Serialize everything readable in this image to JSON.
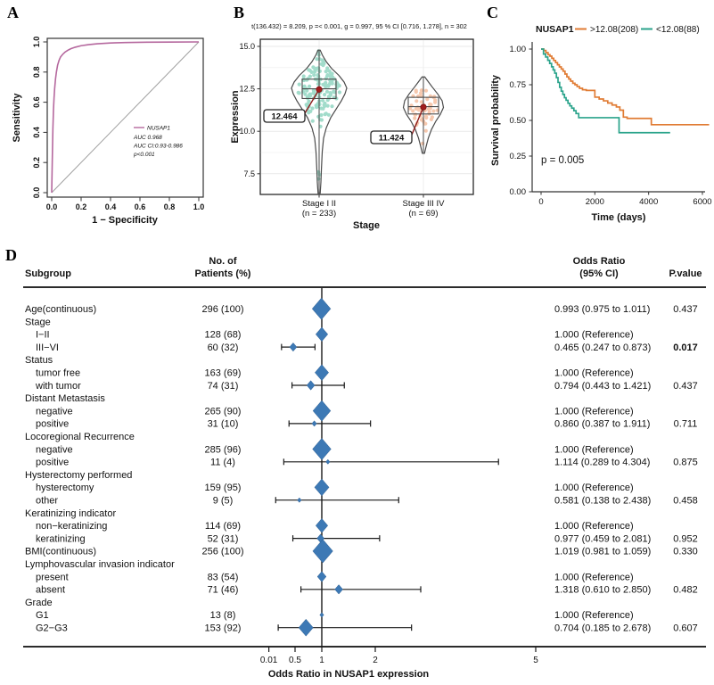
{
  "panel_labels": {
    "a": "A",
    "b": "B",
    "c": "C",
    "d": "D"
  },
  "chart_data": [
    {
      "id": "roc",
      "type": "line",
      "xlabel": "1 − Specificity",
      "ylabel": "Sensitivity",
      "xticks": [
        "0.0",
        "0.2",
        "0.4",
        "0.6",
        "0.8",
        "1.0"
      ],
      "yticks": [
        "0.0",
        "0.2",
        "0.4",
        "0.6",
        "0.8",
        "1.0"
      ],
      "xlim": [
        0,
        1
      ],
      "ylim": [
        0,
        1
      ],
      "legend": {
        "series_label": "NUSAP1",
        "lines": [
          "AUC 0.968",
          "AUC CI:0.93-0.986",
          "p<0.001"
        ]
      },
      "colors": {
        "curve": "#b5689e",
        "diagonal": "#a0a0a0"
      },
      "series": [
        {
          "name": "NUSAP1",
          "points": [
            [
              0,
              0
            ],
            [
              0.004,
              0.22
            ],
            [
              0.008,
              0.42
            ],
            [
              0.012,
              0.55
            ],
            [
              0.016,
              0.63
            ],
            [
              0.02,
              0.69
            ],
            [
              0.026,
              0.755
            ],
            [
              0.032,
              0.8
            ],
            [
              0.04,
              0.845
            ],
            [
              0.05,
              0.878
            ],
            [
              0.06,
              0.9
            ],
            [
              0.075,
              0.918
            ],
            [
              0.09,
              0.932
            ],
            [
              0.11,
              0.945
            ],
            [
              0.13,
              0.955
            ],
            [
              0.16,
              0.965
            ],
            [
              0.2,
              0.975
            ],
            [
              0.25,
              0.982
            ],
            [
              0.31,
              0.988
            ],
            [
              0.4,
              0.993
            ],
            [
              0.5,
              0.996
            ],
            [
              0.65,
              0.998
            ],
            [
              0.8,
              0.999
            ],
            [
              1,
              1
            ]
          ]
        }
      ]
    },
    {
      "id": "violin",
      "type": "violin-box-scatter",
      "title": "t(136.432) = 8.209, p =< 0.001, g = 0.997, 95 % CI [0.716, 1.278], n = 302",
      "xlabel": "Stage",
      "ylabel": "Expression",
      "yticks": [
        "15.0",
        "12.5",
        "10.0",
        "7.5"
      ],
      "ylim": [
        6.2,
        15.3
      ],
      "mean_dot_color": "#a11d1d",
      "groups": [
        {
          "label": "Stage I II",
          "sub": "(n = 233)",
          "n": 233,
          "mean": 12.464,
          "mean_label": "12.464",
          "median": 12.5,
          "q1": 11.93,
          "q3": 13.07,
          "min": 6.35,
          "max": 14.78,
          "color": "#57c0a1",
          "profile": [
            [
              6.35,
              1.2
            ],
            [
              7.0,
              2
            ],
            [
              7.8,
              2.6
            ],
            [
              8.8,
              3.5
            ],
            [
              9.6,
              5
            ],
            [
              10.2,
              8
            ],
            [
              10.8,
              13
            ],
            [
              11.3,
              19
            ],
            [
              11.8,
              25
            ],
            [
              12.2,
              29
            ],
            [
              12.55,
              31
            ],
            [
              12.9,
              28
            ],
            [
              13.3,
              22
            ],
            [
              13.7,
              14
            ],
            [
              14.1,
              8
            ],
            [
              14.5,
              3.5
            ],
            [
              14.78,
              1.2
            ]
          ]
        },
        {
          "label": "Stage III IV",
          "sub": "(n = 69)",
          "n": 69,
          "mean": 11.424,
          "mean_label": "11.424",
          "median": 11.45,
          "q1": 11.02,
          "q3": 12.0,
          "min": 8.7,
          "max": 13.2,
          "color": "#f09c6c",
          "profile": [
            [
              8.7,
              1.2
            ],
            [
              9.1,
              3
            ],
            [
              9.6,
              5.5
            ],
            [
              10.1,
              9
            ],
            [
              10.6,
              14
            ],
            [
              11.0,
              19
            ],
            [
              11.4,
              22.5
            ],
            [
              11.8,
              21
            ],
            [
              12.2,
              16
            ],
            [
              12.6,
              10
            ],
            [
              12.95,
              5
            ],
            [
              13.2,
              1.5
            ]
          ]
        }
      ]
    },
    {
      "id": "km",
      "type": "line",
      "legend_title": "NUSAP1",
      "xlabel": "Time (days)",
      "ylabel": "Survival probability",
      "xticks": [
        "0",
        "2000",
        "4000",
        "6000"
      ],
      "yticks": [
        "1.00",
        "0.75",
        "0.50",
        "0.25",
        "0.00"
      ],
      "xlim": [
        0,
        6300
      ],
      "ylim": [
        0,
        1
      ],
      "annotation": "p = 0.005",
      "series": [
        {
          "name": ">12.08(208)",
          "color": "#e07b33",
          "steps": [
            [
              0,
              1
            ],
            [
              100,
              0.99
            ],
            [
              180,
              0.975
            ],
            [
              260,
              0.96
            ],
            [
              330,
              0.95
            ],
            [
              400,
              0.935
            ],
            [
              470,
              0.92
            ],
            [
              540,
              0.905
            ],
            [
              610,
              0.89
            ],
            [
              680,
              0.875
            ],
            [
              750,
              0.86
            ],
            [
              820,
              0.845
            ],
            [
              890,
              0.825
            ],
            [
              960,
              0.805
            ],
            [
              1030,
              0.79
            ],
            [
              1100,
              0.775
            ],
            [
              1180,
              0.76
            ],
            [
              1260,
              0.75
            ],
            [
              1340,
              0.737
            ],
            [
              1430,
              0.725
            ],
            [
              1540,
              0.715
            ],
            [
              1680,
              0.71
            ],
            [
              2000,
              0.663
            ],
            [
              2160,
              0.65
            ],
            [
              2320,
              0.637
            ],
            [
              2480,
              0.622
            ],
            [
              2640,
              0.608
            ],
            [
              2800,
              0.594
            ],
            [
              2930,
              0.572
            ],
            [
              3060,
              0.523
            ],
            [
              3200,
              0.514
            ],
            [
              4100,
              0.47
            ],
            [
              6250,
              0.47
            ]
          ]
        },
        {
          "name": "<12.08(88)",
          "color": "#2aa38b",
          "steps": [
            [
              0,
              1
            ],
            [
              90,
              0.965
            ],
            [
              170,
              0.944
            ],
            [
              250,
              0.921
            ],
            [
              320,
              0.899
            ],
            [
              390,
              0.876
            ],
            [
              450,
              0.854
            ],
            [
              510,
              0.831
            ],
            [
              570,
              0.8
            ],
            [
              630,
              0.766
            ],
            [
              690,
              0.732
            ],
            [
              750,
              0.705
            ],
            [
              810,
              0.682
            ],
            [
              870,
              0.659
            ],
            [
              930,
              0.641
            ],
            [
              1000,
              0.62
            ],
            [
              1070,
              0.602
            ],
            [
              1140,
              0.586
            ],
            [
              1220,
              0.568
            ],
            [
              1300,
              0.548
            ],
            [
              1400,
              0.519
            ],
            [
              2900,
              0.414
            ],
            [
              4800,
              0.414
            ]
          ]
        }
      ]
    },
    {
      "id": "forest",
      "type": "forest",
      "columns": {
        "subgroup": "Subgroup",
        "patients_line1": "No. of",
        "patients_line2": "Patients (%)",
        "or_line1": "Odds Ratio",
        "or_line2": "(95% CI)",
        "p": "P.value"
      },
      "xlabel": "Odds Ratio in NUSAP1 expression",
      "xticks": [
        "0.01",
        "0.5",
        "1",
        "2",
        "5"
      ],
      "refline": 1,
      "marker_color": "#3d79b5",
      "rows": [
        {
          "label": "Age(continuous)",
          "indent": 0,
          "patients": "296 (100)",
          "or": "0.993 (0.975 to 1.011)",
          "p": "0.437",
          "est": 0.993,
          "lo": 0.975,
          "hi": 1.011,
          "ms": 11.5
        },
        {
          "label": "Stage",
          "indent": 0
        },
        {
          "label": "I−II",
          "indent": 1,
          "patients": "128 (68)",
          "or": "1.000 (Reference)",
          "est": 1.0,
          "ms": 7.5
        },
        {
          "label": "III−VI",
          "indent": 1,
          "patients": "60 (32)",
          "or": "0.465 (0.247 to 0.873)",
          "p": "0.017",
          "bold": true,
          "est": 0.465,
          "lo": 0.247,
          "hi": 0.873,
          "ms": 4.5
        },
        {
          "label": "Status",
          "indent": 0
        },
        {
          "label": "tumor free",
          "indent": 1,
          "patients": "163 (69)",
          "or": "1.000 (Reference)",
          "est": 1.0,
          "ms": 8.5
        },
        {
          "label": "with tumor",
          "indent": 1,
          "patients": "74 (31)",
          "or": "0.794 (0.443 to 1.421)",
          "p": "0.437",
          "est": 0.794,
          "lo": 0.443,
          "hi": 1.421,
          "ms": 5
        },
        {
          "label": "Distant Metastasis",
          "indent": 0
        },
        {
          "label": "negative",
          "indent": 1,
          "patients": "265 (90)",
          "or": "1.000 (Reference)",
          "est": 1.0,
          "ms": 11
        },
        {
          "label": "positive",
          "indent": 1,
          "patients": "31 (10)",
          "or": "0.860 (0.387 to 1.911)",
          "p": "0.711",
          "est": 0.86,
          "lo": 0.387,
          "hi": 1.911,
          "ms": 3
        },
        {
          "label": "Locoregional Recurrence",
          "indent": 0
        },
        {
          "label": "negative",
          "indent": 1,
          "patients": "285 (96)",
          "or": "1.000 (Reference)",
          "est": 1.0,
          "ms": 11.5
        },
        {
          "label": "positive",
          "indent": 1,
          "patients": "11 (4)",
          "or": "1.114 (0.289 to 4.304)",
          "p": "0.875",
          "est": 1.114,
          "lo": 0.289,
          "hi": 4.304,
          "ms": 2.5
        },
        {
          "label": "Hysterectomy performed",
          "indent": 0
        },
        {
          "label": "hysterectomy",
          "indent": 1,
          "patients": "159 (95)",
          "or": "1.000 (Reference)",
          "est": 1.0,
          "ms": 9
        },
        {
          "label": "other",
          "indent": 1,
          "patients": "9 (5)",
          "or": "0.581 (0.138 to 2.438)",
          "p": "0.458",
          "est": 0.581,
          "lo": 0.138,
          "hi": 2.438,
          "ms": 2.5
        },
        {
          "label": "Keratinizing indicator",
          "indent": 0
        },
        {
          "label": "non−keratinizing",
          "indent": 1,
          "patients": "114 (69)",
          "or": "1.000 (Reference)",
          "est": 1.0,
          "ms": 7.5
        },
        {
          "label": "keratinizing",
          "indent": 1,
          "patients": "52 (31)",
          "or": "0.977 (0.459 to 2.081)",
          "p": "0.952",
          "est": 0.977,
          "lo": 0.459,
          "hi": 2.081,
          "ms": 4.5
        },
        {
          "label": "BMI(continuous)",
          "indent": 0,
          "patients": "256 (100)",
          "or": "1.019 (0.981 to 1.059)",
          "p": "0.330",
          "est": 1.019,
          "lo": 0.981,
          "hi": 1.059,
          "ms": 12.5
        },
        {
          "label": "Lymphovascular invasion indicator",
          "indent": 0
        },
        {
          "label": "present",
          "indent": 1,
          "patients": "83 (54)",
          "or": "1.000 (Reference)",
          "est": 1.0,
          "ms": 5.5
        },
        {
          "label": "absent",
          "indent": 1,
          "patients": "71 (46)",
          "or": "1.318 (0.610 to 2.850)",
          "p": "0.482",
          "est": 1.318,
          "lo": 0.61,
          "hi": 2.85,
          "ms": 5
        },
        {
          "label": "Grade",
          "indent": 0
        },
        {
          "label": "G1",
          "indent": 1,
          "patients": "13 (8)",
          "or": "1.000 (Reference)",
          "est": 1.0,
          "ms": 2.5
        },
        {
          "label": "G2−G3",
          "indent": 1,
          "patients": "153 (92)",
          "or": "0.704 (0.185 to 2.678)",
          "p": "0.607",
          "est": 0.704,
          "lo": 0.185,
          "hi": 2.678,
          "ms": 9
        }
      ]
    }
  ]
}
